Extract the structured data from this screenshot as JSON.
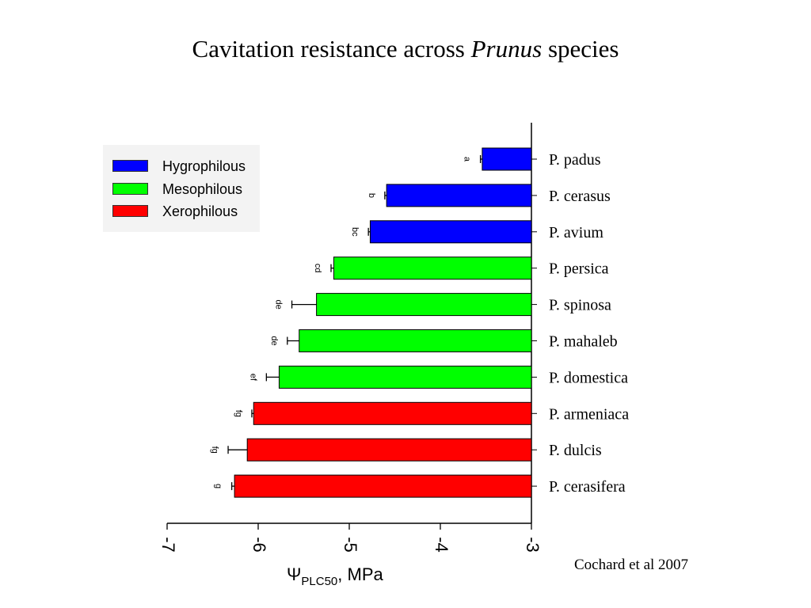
{
  "slide": {
    "title_prefix": "Cavitation resistance across",
    "title_italic": "Prunus",
    "title_suffix": "species",
    "credit": "Cochard et al 2007"
  },
  "chart_data": {
    "type": "bar",
    "orientation": "horizontal",
    "x_axis": {
      "label_symbol": "Ψ",
      "label_subscript": "PLC50",
      "label_unit": ", MPa",
      "xlim": [
        -7,
        -3
      ],
      "ticks": [
        -7,
        -6,
        -5,
        -4,
        -3
      ],
      "tick_labels": [
        "-7",
        "-6",
        "-5",
        "-4",
        "-3"
      ],
      "tick_labels_rotated": true
    },
    "legend": {
      "placement": "top-left",
      "entries": [
        {
          "label": "Hygrophilous",
          "color": "#0000ff"
        },
        {
          "label": "Mesophilous",
          "color": "#00ff00"
        },
        {
          "label": "Xerophilous",
          "color": "#ff0000"
        }
      ]
    },
    "categories": [
      "P. padus",
      "P. cerasus",
      "P. avium",
      "P. persica",
      "P. spinosa",
      "P. mahaleb",
      "P. domestica",
      "P. armeniaca",
      "P. dulcis",
      "P. cerasifera"
    ],
    "values": [
      -3.54,
      -4.59,
      -4.77,
      -5.17,
      -5.36,
      -5.55,
      -5.77,
      -6.05,
      -6.12,
      -6.26
    ],
    "errors": [
      0.02,
      0.02,
      0.02,
      0.03,
      0.27,
      0.13,
      0.14,
      0.02,
      0.21,
      0.03
    ],
    "groups": [
      "Hygrophilous",
      "Hygrophilous",
      "Hygrophilous",
      "Mesophilous",
      "Mesophilous",
      "Mesophilous",
      "Mesophilous",
      "Xerophilous",
      "Xerophilous",
      "Xerophilous"
    ],
    "significance_letters": [
      "a",
      "b",
      "bc",
      "cd",
      "de",
      "de",
      "ef",
      "fg",
      "fg",
      "g"
    ],
    "grid": false
  }
}
